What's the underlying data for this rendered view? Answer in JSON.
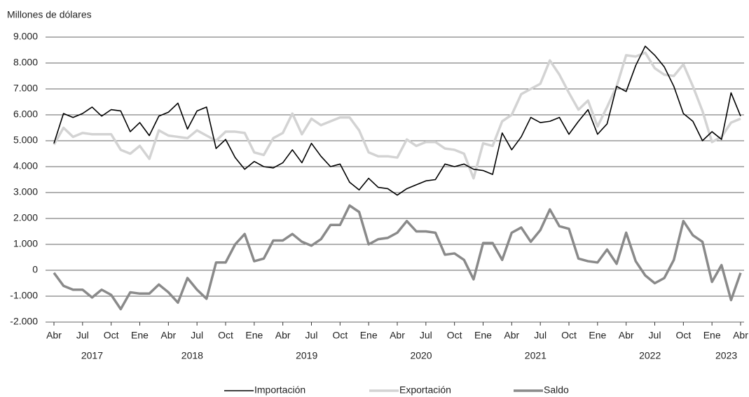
{
  "chart_data": {
    "type": "line",
    "y_label": "Millones de dólares",
    "categories": [
      "Abr",
      null,
      null,
      "Jul",
      null,
      null,
      "Oct",
      null,
      null,
      "Ene",
      null,
      null,
      "Abr",
      null,
      null,
      "Jul",
      null,
      null,
      "Oct",
      null,
      null,
      "Ene",
      null,
      null,
      "Abr",
      null,
      null,
      "Jul",
      null,
      null,
      "Oct",
      null,
      null,
      "Ene",
      null,
      null,
      "Abr",
      null,
      null,
      "Jul",
      null,
      null,
      "Oct",
      null,
      null,
      "Ene",
      null,
      null,
      "Abr",
      null,
      null,
      "Jul",
      null,
      null,
      "Oct",
      null,
      null,
      "Ene",
      null,
      null,
      "Abr",
      null,
      null,
      "Jul",
      null,
      null,
      "Oct",
      null,
      null,
      "Ene",
      null,
      null,
      "Abr"
    ],
    "year_groups": [
      {
        "label": "2017",
        "span": 9
      },
      {
        "label": "2018",
        "span": 12
      },
      {
        "label": "2019",
        "span": 12
      },
      {
        "label": "2020",
        "span": 12
      },
      {
        "label": "2021",
        "span": 12
      },
      {
        "label": "2022",
        "span": 12
      },
      {
        "label": "2023",
        "span": 4
      }
    ],
    "ylim": [
      -2000,
      9000
    ],
    "yticks": [
      {
        "value": -2000,
        "label": "-2.000"
      },
      {
        "value": -1000,
        "label": "-1.000"
      },
      0,
      {
        "value": 1000,
        "label": "1.000"
      },
      {
        "value": 2000,
        "label": "2.000"
      },
      {
        "value": 3000,
        "label": "3.000"
      },
      {
        "value": 4000,
        "label": "4.000"
      },
      {
        "value": 5000,
        "label": "5.000"
      },
      {
        "value": 6000,
        "label": "6.000"
      },
      {
        "value": 7000,
        "label": "7.000"
      },
      {
        "value": 8000,
        "label": "8.000"
      },
      {
        "value": 9000,
        "label": "9.000"
      }
    ],
    "grid": true,
    "legend": "bottom",
    "series": [
      {
        "name": "Importación",
        "color": "#000000",
        "values": [
          4900,
          6050,
          5900,
          6050,
          6300,
          5950,
          6200,
          6150,
          5350,
          5700,
          5200,
          5950,
          6100,
          6450,
          5450,
          6150,
          6300,
          4700,
          5050,
          4350,
          3900,
          4200,
          4000,
          3950,
          4150,
          4650,
          4150,
          4900,
          4400,
          4000,
          4100,
          3400,
          3100,
          3550,
          3200,
          3150,
          2900,
          3150,
          3300,
          3450,
          3500,
          4100,
          4000,
          4100,
          3900,
          3850,
          3700,
          5300,
          4650,
          5150,
          5900,
          5700,
          5750,
          5900,
          5250,
          5750,
          6200,
          5250,
          5650,
          7100,
          6900,
          7900,
          8650,
          8300,
          7850,
          7100,
          6050,
          5750,
          5000,
          5350,
          5050,
          6850,
          5950
        ]
      },
      {
        "name": "Exportación",
        "color": "#d3d3d3",
        "values": [
          4850,
          5500,
          5150,
          5300,
          5250,
          5250,
          5250,
          4650,
          4500,
          4800,
          4300,
          5400,
          5200,
          5150,
          5100,
          5400,
          5200,
          5000,
          5350,
          5350,
          5300,
          4550,
          4450,
          5100,
          5300,
          6050,
          5250,
          5850,
          5600,
          5750,
          5900,
          5900,
          5400,
          4550,
          4400,
          4400,
          4350,
          5050,
          4800,
          4950,
          4950,
          4700,
          4650,
          4500,
          3550,
          4900,
          4800,
          5750,
          6000,
          6800,
          7000,
          7200,
          8100,
          7550,
          6850,
          6200,
          6550,
          5550,
          6300,
          7100,
          8300,
          8250,
          8400,
          7800,
          7550,
          7500,
          7950,
          7100,
          6150,
          4950,
          5150,
          5700,
          5850
        ]
      },
      {
        "name": "Saldo",
        "color": "#8a8a8a",
        "values": [
          -100,
          -600,
          -750,
          -750,
          -1050,
          -750,
          -950,
          -1500,
          -850,
          -900,
          -900,
          -550,
          -850,
          -1250,
          -300,
          -750,
          -1100,
          300,
          300,
          1000,
          1400,
          350,
          450,
          1150,
          1150,
          1400,
          1100,
          950,
          1200,
          1750,
          1750,
          2500,
          2250,
          1000,
          1200,
          1250,
          1450,
          1900,
          1500,
          1500,
          1450,
          600,
          650,
          400,
          -350,
          1050,
          1050,
          400,
          1450,
          1650,
          1100,
          1550,
          2350,
          1700,
          1600,
          450,
          350,
          300,
          800,
          250,
          1450,
          350,
          -200,
          -500,
          -300,
          400,
          1900,
          1350,
          1100,
          -450,
          200,
          -1150,
          -100
        ]
      }
    ]
  }
}
